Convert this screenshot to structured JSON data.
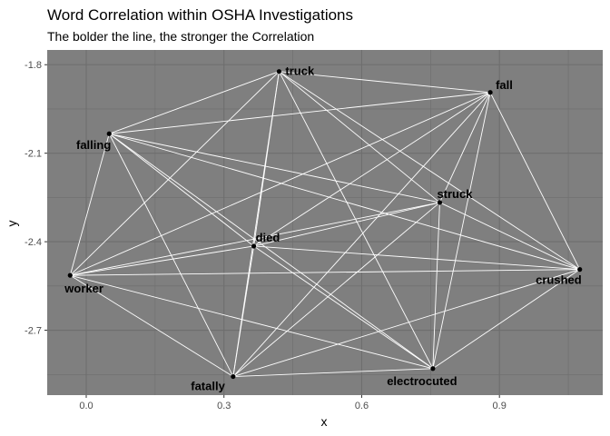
{
  "chart_data": {
    "type": "network",
    "title": "Word Correlation within OSHA Investigations",
    "subtitle": "The bolder the line, the stronger the Correlation",
    "xlabel": "x",
    "ylabel": "y",
    "xlim": [
      -0.085,
      1.125
    ],
    "ylim": [
      -2.92,
      -1.75
    ],
    "xticks": [
      0.0,
      0.3,
      0.6,
      0.9
    ],
    "xtick_labels": [
      "0.0",
      "0.3",
      "0.6",
      "0.9"
    ],
    "yticks": [
      -1.8,
      -2.1,
      -2.4,
      -2.7
    ],
    "ytick_labels": [
      "-1.8",
      "-2.1",
      "-2.4",
      "-2.7"
    ],
    "grid": true,
    "colors": {
      "panel": "#7f7f7f",
      "grid": "#6e6e6e",
      "edge": "#ffffff",
      "node": "#000000"
    },
    "nodes": [
      {
        "name": "truck",
        "x": 0.42,
        "y": -1.823
      },
      {
        "name": "fall",
        "x": 0.88,
        "y": -1.894
      },
      {
        "name": "falling",
        "x": 0.05,
        "y": -2.034
      },
      {
        "name": "struck",
        "x": 0.77,
        "y": -2.267
      },
      {
        "name": "died",
        "x": 0.365,
        "y": -2.415
      },
      {
        "name": "worker",
        "x": -0.035,
        "y": -2.514
      },
      {
        "name": "crushed",
        "x": 1.075,
        "y": -2.494
      },
      {
        "name": "fatally",
        "x": 0.32,
        "y": -2.857
      },
      {
        "name": "electrocuted",
        "x": 0.755,
        "y": -2.83
      }
    ],
    "edges": [
      [
        "truck",
        "fall"
      ],
      [
        "truck",
        "falling"
      ],
      [
        "truck",
        "struck"
      ],
      [
        "truck",
        "died"
      ],
      [
        "truck",
        "worker"
      ],
      [
        "truck",
        "crushed"
      ],
      [
        "truck",
        "fatally"
      ],
      [
        "truck",
        "electrocuted"
      ],
      [
        "fall",
        "falling"
      ],
      [
        "fall",
        "struck"
      ],
      [
        "fall",
        "died"
      ],
      [
        "fall",
        "worker"
      ],
      [
        "fall",
        "crushed"
      ],
      [
        "fall",
        "fatally"
      ],
      [
        "fall",
        "electrocuted"
      ],
      [
        "falling",
        "struck"
      ],
      [
        "falling",
        "died"
      ],
      [
        "falling",
        "worker"
      ],
      [
        "falling",
        "crushed"
      ],
      [
        "falling",
        "fatally"
      ],
      [
        "falling",
        "electrocuted"
      ],
      [
        "struck",
        "died"
      ],
      [
        "struck",
        "worker"
      ],
      [
        "struck",
        "crushed"
      ],
      [
        "struck",
        "fatally"
      ],
      [
        "struck",
        "electrocuted"
      ],
      [
        "died",
        "worker"
      ],
      [
        "died",
        "crushed"
      ],
      [
        "died",
        "fatally"
      ],
      [
        "died",
        "electrocuted"
      ],
      [
        "worker",
        "crushed"
      ],
      [
        "worker",
        "fatally"
      ],
      [
        "worker",
        "electrocuted"
      ],
      [
        "crushed",
        "fatally"
      ],
      [
        "crushed",
        "electrocuted"
      ],
      [
        "fatally",
        "electrocuted"
      ]
    ]
  }
}
